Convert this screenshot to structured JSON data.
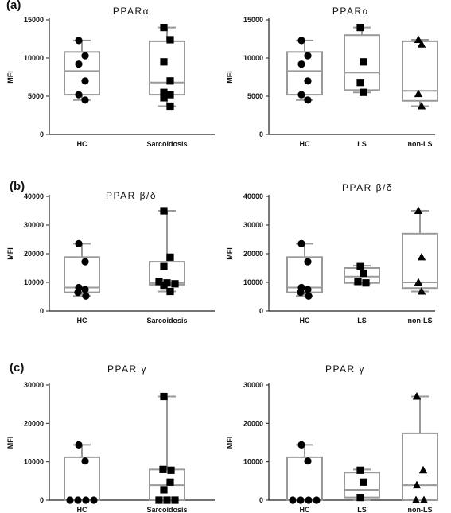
{
  "panel_labels": [
    "(a)",
    "(b)",
    "(c)"
  ],
  "chart_data": [
    {
      "type": "box",
      "title": "PPARα",
      "ylabel": "MFI",
      "ylim": [
        0,
        15000
      ],
      "yticks": [
        0,
        5000,
        10000,
        15000
      ],
      "categories": [
        "HC",
        "Sarcoidosis"
      ],
      "boxes": [
        {
          "min": 4500,
          "q1": 5200,
          "median": 8300,
          "q3": 10800,
          "max": 12300,
          "marker": "circle",
          "points": [
            12300,
            10300,
            9200,
            7000,
            5200,
            4500
          ]
        },
        {
          "min": 3700,
          "q1": 5200,
          "median": 6800,
          "q3": 12200,
          "max": 14000,
          "marker": "square",
          "points": [
            14000,
            12400,
            9500,
            7000,
            5500,
            5200,
            4800,
            3700
          ]
        }
      ]
    },
    {
      "type": "box",
      "title": "PPARα",
      "ylabel": "MFI",
      "ylim": [
        0,
        15000
      ],
      "yticks": [
        0,
        5000,
        10000,
        15000
      ],
      "categories": [
        "HC",
        "LS",
        "non-LS"
      ],
      "boxes": [
        {
          "min": 4500,
          "q1": 5200,
          "median": 8300,
          "q3": 10800,
          "max": 12300,
          "marker": "circle",
          "points": [
            12300,
            10300,
            9200,
            7000,
            5200,
            4500
          ]
        },
        {
          "min": 5500,
          "q1": 5800,
          "median": 8100,
          "q3": 13000,
          "max": 14000,
          "marker": "square",
          "points": [
            14000,
            9500,
            6800,
            5500
          ]
        },
        {
          "min": 3700,
          "q1": 4400,
          "median": 5700,
          "q3": 12200,
          "max": 12400,
          "marker": "triangle",
          "points": [
            12400,
            11800,
            5300,
            3700
          ]
        }
      ]
    },
    {
      "type": "box",
      "title": "PPAR β/δ",
      "ylabel": "MFI",
      "ylim": [
        0,
        40000
      ],
      "yticks": [
        0,
        10000,
        20000,
        30000,
        40000
      ],
      "categories": [
        "HC",
        "Sarcoidosis"
      ],
      "boxes": [
        {
          "min": 5200,
          "q1": 6500,
          "median": 8200,
          "q3": 18800,
          "max": 23500,
          "marker": "circle",
          "points": [
            23500,
            17200,
            8200,
            7500,
            6500,
            5200
          ]
        },
        {
          "min": 6800,
          "q1": 9200,
          "median": 9800,
          "q3": 17200,
          "max": 35000,
          "marker": "square",
          "points": [
            35000,
            18800,
            15500,
            10300,
            9800,
            9500,
            9000,
            6800
          ]
        }
      ]
    },
    {
      "type": "box",
      "title": "PPAR β/δ",
      "ylabel": "MFI",
      "ylim": [
        0,
        40000
      ],
      "yticks": [
        0,
        10000,
        20000,
        30000,
        40000
      ],
      "categories": [
        "HC",
        "LS",
        "non-LS"
      ],
      "boxes": [
        {
          "min": 5200,
          "q1": 6500,
          "median": 8200,
          "q3": 18800,
          "max": 23500,
          "marker": "circle",
          "points": [
            23500,
            17200,
            8200,
            7500,
            6500,
            5200
          ]
        },
        {
          "min": 9500,
          "q1": 9800,
          "median": 12000,
          "q3": 15000,
          "max": 15800,
          "marker": "square",
          "points": [
            15500,
            13200,
            10300,
            9800
          ]
        },
        {
          "min": 6800,
          "q1": 8000,
          "median": 10000,
          "q3": 27000,
          "max": 35000,
          "marker": "triangle",
          "points": [
            35000,
            18800,
            10000,
            6800
          ]
        }
      ]
    },
    {
      "type": "box",
      "title": "PPAR γ",
      "ylabel": "MFI",
      "ylim": [
        0,
        30000
      ],
      "yticks": [
        0,
        10000,
        20000,
        30000
      ],
      "categories": [
        "HC",
        "Sarcoidosis"
      ],
      "boxes": [
        {
          "min": 0,
          "q1": 0,
          "median": 0,
          "q3": 11200,
          "max": 14400,
          "marker": "circle",
          "points": [
            14400,
            10200,
            0,
            0,
            0,
            0
          ]
        },
        {
          "min": 0,
          "q1": 0,
          "median": 3900,
          "q3": 8000,
          "max": 27000,
          "marker": "square",
          "points": [
            27000,
            8000,
            7800,
            4700,
            2700,
            0,
            0,
            0
          ]
        }
      ]
    },
    {
      "type": "box",
      "title": "PPAR γ",
      "ylabel": "MFI",
      "ylim": [
        0,
        30000
      ],
      "yticks": [
        0,
        10000,
        20000,
        30000
      ],
      "categories": [
        "HC",
        "LS",
        "non-LS"
      ],
      "boxes": [
        {
          "min": 0,
          "q1": 0,
          "median": 0,
          "q3": 11200,
          "max": 14400,
          "marker": "circle",
          "points": [
            14400,
            10200,
            0,
            0,
            0,
            0
          ]
        },
        {
          "min": 0,
          "q1": 700,
          "median": 2700,
          "q3": 7200,
          "max": 8000,
          "marker": "square",
          "points": [
            7800,
            4700,
            700
          ]
        },
        {
          "min": 0,
          "q1": 0,
          "median": 3900,
          "q3": 17400,
          "max": 27000,
          "marker": "triangle",
          "points": [
            27000,
            7800,
            3900,
            0,
            0
          ]
        }
      ]
    }
  ]
}
